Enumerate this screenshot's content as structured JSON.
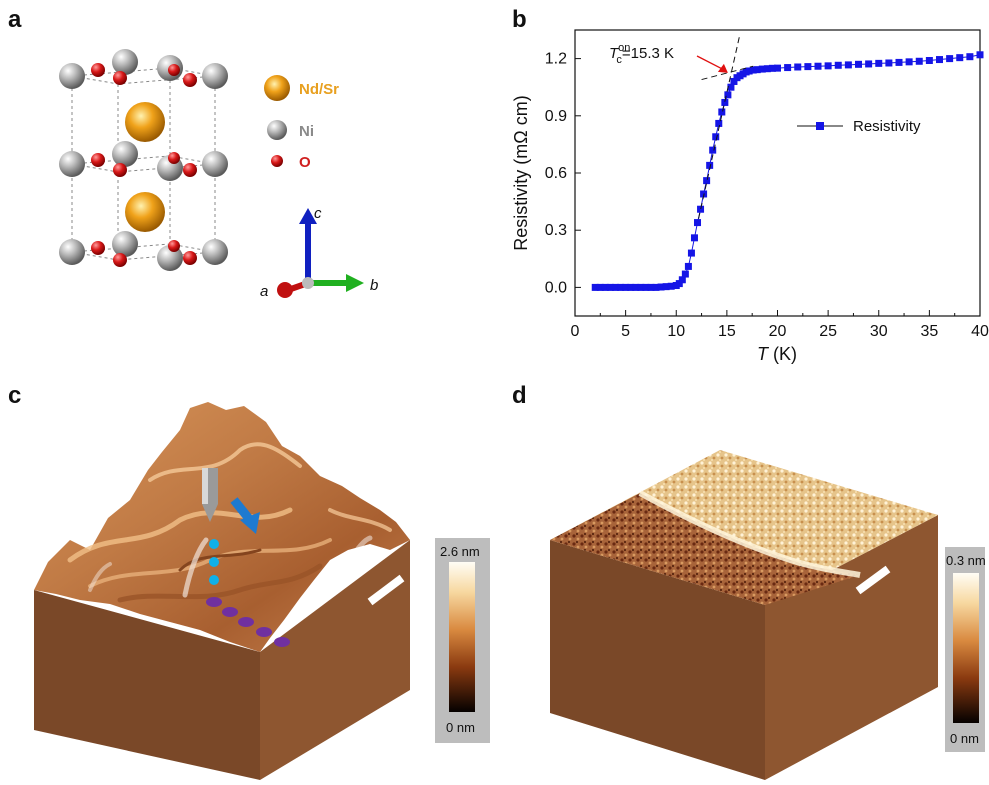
{
  "panels": {
    "a": "a",
    "b": "b",
    "c": "c",
    "d": "d"
  },
  "structure": {
    "legend": [
      {
        "label": "Nd/Sr",
        "color": "#e8a020"
      },
      {
        "label": "Ni",
        "color": "#8a8a8a"
      },
      {
        "label": "O",
        "color": "#d02020"
      }
    ],
    "axes": {
      "a": "a",
      "b": "b",
      "c": "c"
    },
    "colors": {
      "a_axis": "#c01010",
      "b_axis": "#20b020",
      "c_axis": "#1020c0"
    }
  },
  "chart_data": {
    "type": "scatter",
    "xlabel_italic": "T",
    "xlabel_unit": " (K)",
    "ylabel": "Resistivity (mΩ cm)",
    "xlim": [
      0,
      40
    ],
    "ylim": [
      -0.15,
      1.35
    ],
    "x_ticks": [
      0,
      5,
      10,
      15,
      20,
      25,
      30,
      35,
      40
    ],
    "y_ticks": [
      "0.0",
      "0.3",
      "0.6",
      "0.9",
      "1.2"
    ],
    "y_tick_values": [
      0.0,
      0.3,
      0.6,
      0.9,
      1.2
    ],
    "series": [
      {
        "name": "Resistivity",
        "color": "#1515e6",
        "x": [
          2.0,
          2.5,
          3.0,
          3.5,
          4.0,
          4.5,
          5.0,
          5.5,
          6.0,
          6.5,
          7.0,
          7.5,
          8.0,
          8.5,
          9.0,
          9.5,
          10.0,
          10.3,
          10.6,
          10.9,
          11.2,
          11.5,
          11.8,
          12.1,
          12.4,
          12.7,
          13.0,
          13.3,
          13.6,
          13.9,
          14.2,
          14.5,
          14.8,
          15.1,
          15.4,
          15.7,
          16.0,
          16.3,
          16.6,
          16.9,
          17.2,
          17.6,
          18.0,
          18.5,
          19.0,
          19.5,
          20.0,
          21.0,
          22.0,
          23.0,
          24.0,
          25.0,
          26.0,
          27.0,
          28.0,
          29.0,
          30.0,
          31.0,
          32.0,
          33.0,
          34.0,
          35.0,
          36.0,
          37.0,
          38.0,
          39.0,
          40.0
        ],
        "y": [
          0.0,
          0.0,
          0.0,
          0.0,
          0.0,
          0.0,
          0.0,
          0.0,
          0.0,
          0.0,
          0.0,
          0.0,
          0.0,
          0.002,
          0.004,
          0.006,
          0.01,
          0.02,
          0.04,
          0.07,
          0.11,
          0.18,
          0.26,
          0.34,
          0.41,
          0.49,
          0.56,
          0.64,
          0.72,
          0.79,
          0.86,
          0.92,
          0.97,
          1.01,
          1.05,
          1.08,
          1.1,
          1.11,
          1.12,
          1.13,
          1.135,
          1.14,
          1.142,
          1.145,
          1.147,
          1.149,
          1.15,
          1.153,
          1.156,
          1.158,
          1.16,
          1.162,
          1.165,
          1.167,
          1.17,
          1.172,
          1.175,
          1.177,
          1.18,
          1.183,
          1.186,
          1.19,
          1.195,
          1.2,
          1.205,
          1.21,
          1.22
        ]
      }
    ],
    "annotation": {
      "T_sym": "T",
      "sub": "c",
      "sup": "on",
      "value": "=15.3 K",
      "tc": 15.3
    },
    "legend_position": "right-middle",
    "grid": false
  },
  "afm_c": {
    "cb_max": "2.6 nm",
    "cb_min": "0 nm"
  },
  "afm_d": {
    "cb_max": "0.3 nm",
    "cb_min": "0 nm"
  }
}
